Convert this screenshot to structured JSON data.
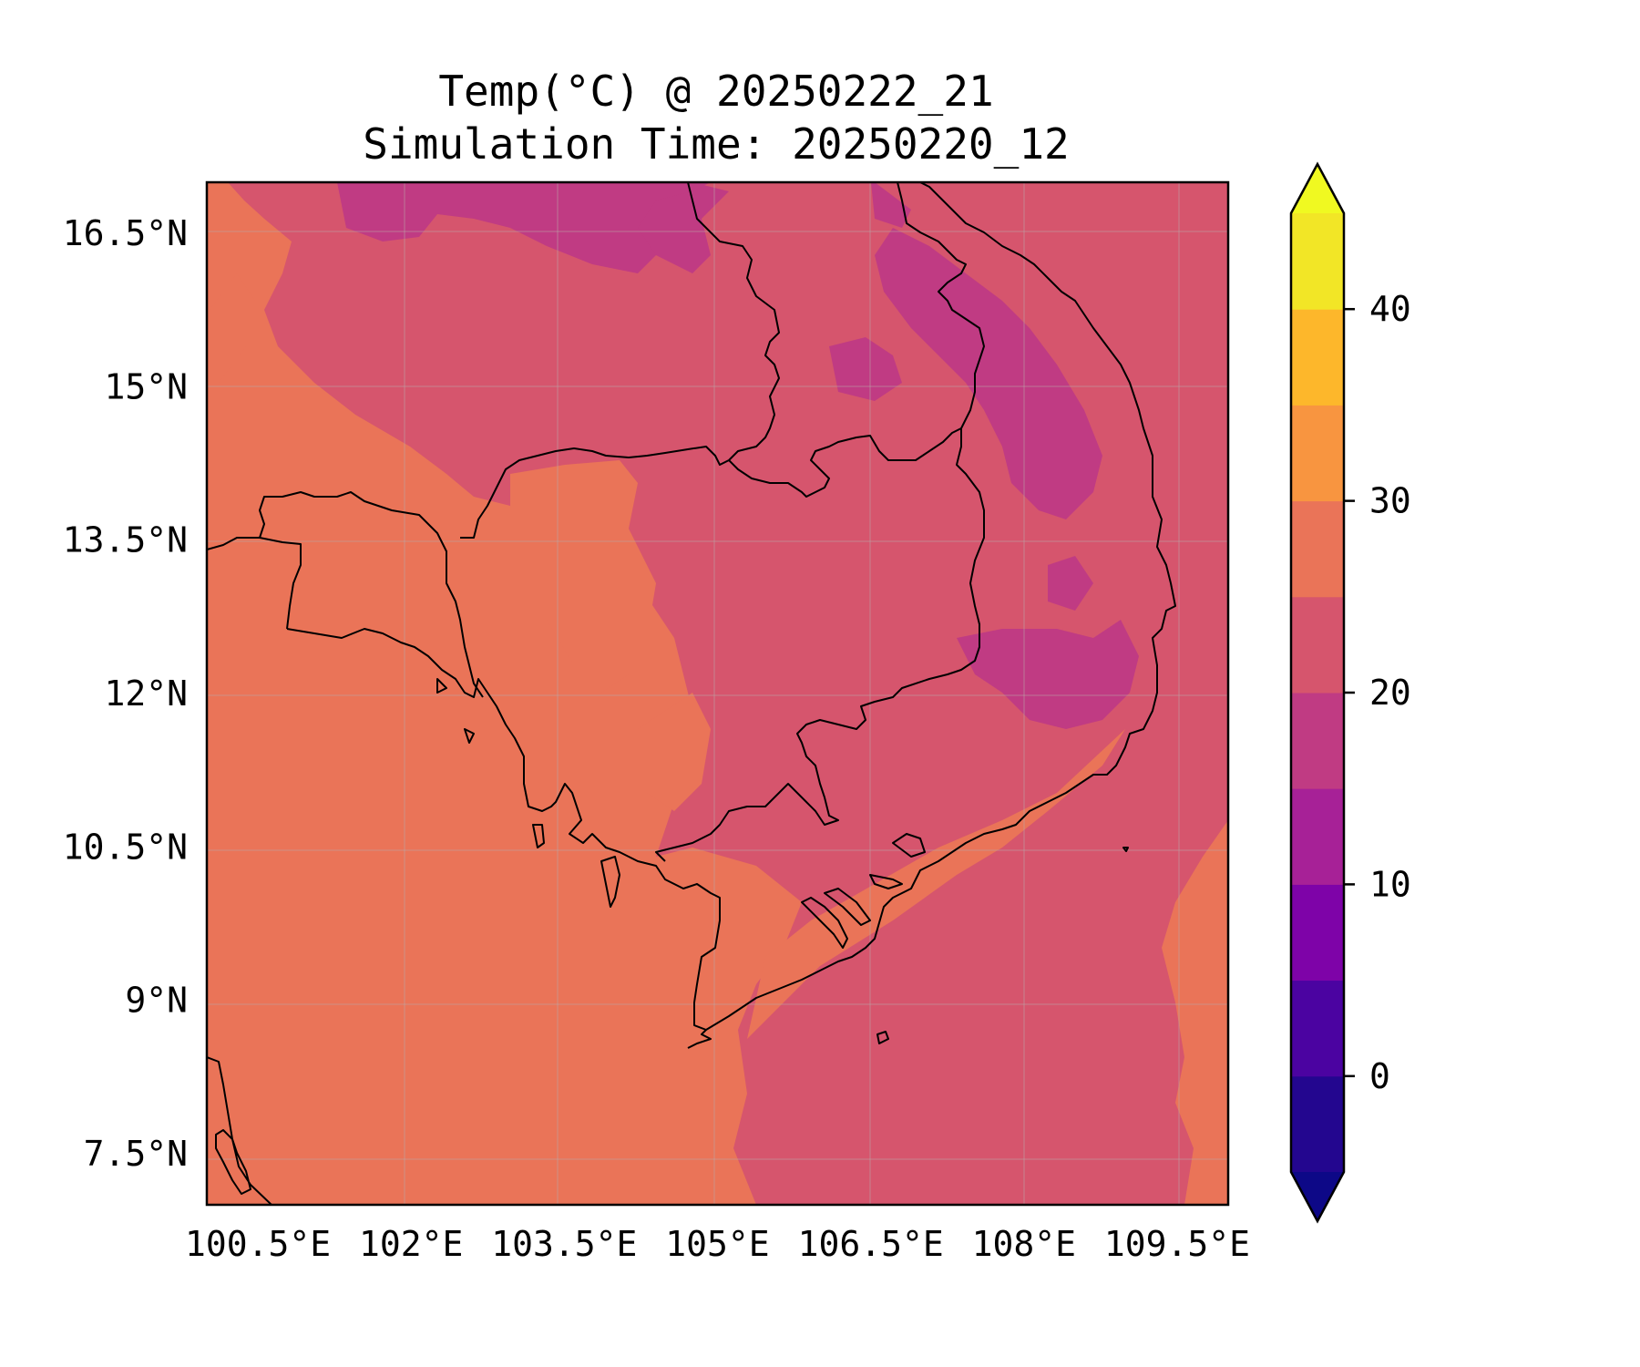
{
  "title_line1": "Temp(°C) @ 20250222_21",
  "title_line2": "Simulation Time: 20250220_12",
  "map": {
    "variable": "Temp(°C)",
    "lon_range": [
      100.0,
      110.0
    ],
    "lat_range": [
      7.0,
      17.0
    ],
    "lon_ticks": [
      {
        "value": 100.5,
        "label": "100.5°E"
      },
      {
        "value": 102.0,
        "label": "102°E"
      },
      {
        "value": 103.5,
        "label": "103.5°E"
      },
      {
        "value": 105.0,
        "label": "105°E"
      },
      {
        "value": 106.5,
        "label": "106.5°E"
      },
      {
        "value": 108.0,
        "label": "108°E"
      },
      {
        "value": 109.5,
        "label": "109.5°E"
      }
    ],
    "lat_ticks": [
      {
        "value": 16.5,
        "label": "16.5°N"
      },
      {
        "value": 15.0,
        "label": "15°N"
      },
      {
        "value": 13.5,
        "label": "13.5°N"
      },
      {
        "value": 12.0,
        "label": "12°N"
      },
      {
        "value": 10.5,
        "label": "10.5°N"
      },
      {
        "value": 9.0,
        "label": "9°N"
      },
      {
        "value": 7.5,
        "label": "7.5°N"
      }
    ],
    "grid": true,
    "colors": {
      "band_15_20": "#c03b83",
      "band_20_25": "#d6556d",
      "band_25_30": "#ea7458"
    }
  },
  "colorbar": {
    "cmap": "plasma",
    "extend": "both",
    "levels": [
      -5,
      0,
      5,
      10,
      15,
      20,
      25,
      30,
      35,
      40,
      45
    ],
    "colors": [
      "#23068f",
      "#4b03a1",
      "#7e03a8",
      "#a72197",
      "#c03b83",
      "#d6556d",
      "#ea7458",
      "#f89540",
      "#fdb72b",
      "#f2e626"
    ],
    "under_color": "#0d0887",
    "over_color": "#f0f921",
    "ticks": [
      {
        "value": 0,
        "label": "0"
      },
      {
        "value": 10,
        "label": "10"
      },
      {
        "value": 20,
        "label": "20"
      },
      {
        "value": 30,
        "label": "30"
      },
      {
        "value": 40,
        "label": "40"
      }
    ]
  }
}
